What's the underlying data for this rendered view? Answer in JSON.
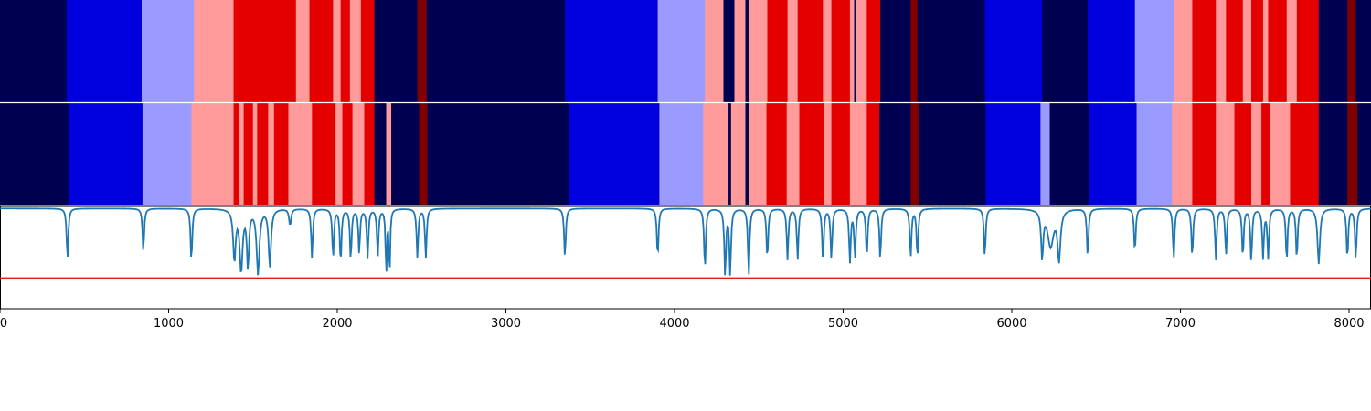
{
  "chart_data": {
    "type": "heatmap",
    "title": "",
    "xlabel": "",
    "ylabel": "",
    "xlim": [
      0,
      8130
    ],
    "x_ticks": [
      {
        "value": 0,
        "label": "0"
      },
      {
        "value": 1000,
        "label": "1000"
      },
      {
        "value": 2000,
        "label": "2000"
      },
      {
        "value": 3000,
        "label": "3000"
      },
      {
        "value": 4000,
        "label": "4000"
      },
      {
        "value": 5000,
        "label": "5000"
      },
      {
        "value": 6000,
        "label": "6000"
      },
      {
        "value": 7000,
        "label": "7000"
      },
      {
        "value": 8000,
        "label": "8000"
      }
    ],
    "state_colors": {
      "0": "#000050",
      "1": "#0000de",
      "2": "#9b9bff",
      "3": "#ff9b9b",
      "4": "#e50000",
      "5": "#800000"
    },
    "bands": [
      {
        "segments": [
          [
            0,
            395,
            0
          ],
          [
            395,
            840,
            1
          ],
          [
            840,
            1150,
            2
          ],
          [
            1150,
            1385,
            3
          ],
          [
            1385,
            1755,
            4
          ],
          [
            1755,
            1835,
            3
          ],
          [
            1835,
            1975,
            4
          ],
          [
            1975,
            2020,
            3
          ],
          [
            2020,
            2075,
            4
          ],
          [
            2075,
            2140,
            3
          ],
          [
            2140,
            2220,
            4
          ],
          [
            2220,
            2475,
            0
          ],
          [
            2475,
            2530,
            5
          ],
          [
            2530,
            3350,
            0
          ],
          [
            3350,
            3900,
            1
          ],
          [
            3900,
            4180,
            2
          ],
          [
            4180,
            4290,
            3
          ],
          [
            4290,
            4355,
            0
          ],
          [
            4355,
            4420,
            3
          ],
          [
            4420,
            4440,
            0
          ],
          [
            4440,
            4550,
            3
          ],
          [
            4550,
            4670,
            4
          ],
          [
            4670,
            4730,
            3
          ],
          [
            4730,
            4880,
            4
          ],
          [
            4880,
            4930,
            3
          ],
          [
            4930,
            5040,
            4
          ],
          [
            5040,
            5065,
            3
          ],
          [
            5065,
            5075,
            0
          ],
          [
            5075,
            5140,
            3
          ],
          [
            5140,
            5220,
            4
          ],
          [
            5220,
            5400,
            0
          ],
          [
            5400,
            5440,
            5
          ],
          [
            5440,
            5840,
            0
          ],
          [
            5840,
            6180,
            1
          ],
          [
            6180,
            6450,
            0
          ],
          [
            6450,
            6730,
            1
          ],
          [
            6730,
            6960,
            2
          ],
          [
            6960,
            7070,
            3
          ],
          [
            7070,
            7210,
            4
          ],
          [
            7210,
            7270,
            3
          ],
          [
            7270,
            7370,
            4
          ],
          [
            7370,
            7420,
            3
          ],
          [
            7420,
            7490,
            4
          ],
          [
            7490,
            7520,
            3
          ],
          [
            7520,
            7630,
            4
          ],
          [
            7630,
            7690,
            3
          ],
          [
            7690,
            7820,
            4
          ],
          [
            7820,
            7990,
            0
          ],
          [
            7990,
            8040,
            5
          ],
          [
            8040,
            8130,
            0
          ]
        ]
      },
      {
        "segments": [
          [
            0,
            410,
            0
          ],
          [
            410,
            845,
            1
          ],
          [
            845,
            1135,
            2
          ],
          [
            1135,
            1385,
            3
          ],
          [
            1385,
            1415,
            4
          ],
          [
            1415,
            1445,
            3
          ],
          [
            1445,
            1500,
            4
          ],
          [
            1500,
            1525,
            3
          ],
          [
            1525,
            1590,
            4
          ],
          [
            1590,
            1625,
            3
          ],
          [
            1625,
            1710,
            4
          ],
          [
            1710,
            1850,
            3
          ],
          [
            1850,
            1990,
            4
          ],
          [
            1990,
            2030,
            3
          ],
          [
            2030,
            2090,
            4
          ],
          [
            2090,
            2160,
            3
          ],
          [
            2160,
            2220,
            4
          ],
          [
            2220,
            2290,
            0
          ],
          [
            2290,
            2320,
            3
          ],
          [
            2320,
            2485,
            0
          ],
          [
            2485,
            2535,
            5
          ],
          [
            2535,
            3375,
            0
          ],
          [
            3375,
            3910,
            1
          ],
          [
            3910,
            4170,
            2
          ],
          [
            4170,
            4320,
            3
          ],
          [
            4320,
            4335,
            0
          ],
          [
            4335,
            4420,
            3
          ],
          [
            4420,
            4440,
            0
          ],
          [
            4440,
            4545,
            3
          ],
          [
            4545,
            4665,
            4
          ],
          [
            4665,
            4740,
            3
          ],
          [
            4740,
            4885,
            4
          ],
          [
            4885,
            4930,
            3
          ],
          [
            4930,
            5040,
            4
          ],
          [
            5040,
            5140,
            3
          ],
          [
            5140,
            5215,
            4
          ],
          [
            5215,
            5400,
            0
          ],
          [
            5400,
            5450,
            5
          ],
          [
            5450,
            5845,
            0
          ],
          [
            5845,
            6170,
            1
          ],
          [
            6170,
            6225,
            2
          ],
          [
            6225,
            6460,
            0
          ],
          [
            6460,
            6740,
            1
          ],
          [
            6740,
            6950,
            2
          ],
          [
            6950,
            7070,
            3
          ],
          [
            7070,
            7210,
            4
          ],
          [
            7210,
            7320,
            3
          ],
          [
            7320,
            7420,
            4
          ],
          [
            7420,
            7480,
            3
          ],
          [
            7480,
            7530,
            4
          ],
          [
            7530,
            7650,
            3
          ],
          [
            7650,
            7690,
            4
          ],
          [
            7690,
            7820,
            4
          ],
          [
            7820,
            7990,
            0
          ],
          [
            7990,
            8050,
            5
          ],
          [
            8050,
            8130,
            0
          ]
        ]
      }
    ],
    "signal": {
      "ylim": [
        0,
        1
      ],
      "baseline": 0.98,
      "threshold": 0.3,
      "threshold_color": "#e31a1c",
      "line_color": "#1f77b4",
      "dips": [
        [
          400,
          0.48,
          8
        ],
        [
          850,
          0.55,
          8
        ],
        [
          1135,
          0.46,
          8
        ],
        [
          1390,
          0.48,
          12
        ],
        [
          1430,
          0.38,
          14
        ],
        [
          1470,
          0.42,
          10
        ],
        [
          1530,
          0.35,
          14
        ],
        [
          1600,
          0.42,
          12
        ],
        [
          1720,
          0.82,
          10
        ],
        [
          1850,
          0.5,
          8
        ],
        [
          1975,
          0.5,
          8
        ],
        [
          2020,
          0.45,
          8
        ],
        [
          2080,
          0.48,
          8
        ],
        [
          2130,
          0.55,
          8
        ],
        [
          2180,
          0.5,
          8
        ],
        [
          2240,
          0.52,
          8
        ],
        [
          2290,
          0.32,
          6
        ],
        [
          2310,
          0.32,
          6
        ],
        [
          2475,
          0.5,
          8
        ],
        [
          2525,
          0.5,
          8
        ],
        [
          3350,
          0.5,
          8
        ],
        [
          3900,
          0.5,
          8
        ],
        [
          4180,
          0.38,
          8
        ],
        [
          4300,
          0.32,
          8
        ],
        [
          4330,
          0.34,
          8
        ],
        [
          4440,
          0.32,
          8
        ],
        [
          4550,
          0.48,
          8
        ],
        [
          4670,
          0.48,
          8
        ],
        [
          4730,
          0.48,
          8
        ],
        [
          4880,
          0.46,
          8
        ],
        [
          4930,
          0.48,
          8
        ],
        [
          5040,
          0.46,
          8
        ],
        [
          5070,
          0.5,
          8
        ],
        [
          5140,
          0.5,
          8
        ],
        [
          5220,
          0.48,
          8
        ],
        [
          5400,
          0.5,
          8
        ],
        [
          5440,
          0.5,
          8
        ],
        [
          5840,
          0.5,
          8
        ],
        [
          6180,
          0.52,
          10
        ],
        [
          6230,
          0.62,
          30
        ],
        [
          6280,
          0.5,
          14
        ],
        [
          6450,
          0.5,
          8
        ],
        [
          6730,
          0.55,
          8
        ],
        [
          6960,
          0.48,
          8
        ],
        [
          7070,
          0.5,
          8
        ],
        [
          7210,
          0.48,
          8
        ],
        [
          7270,
          0.52,
          8
        ],
        [
          7370,
          0.5,
          8
        ],
        [
          7420,
          0.46,
          8
        ],
        [
          7490,
          0.5,
          8
        ],
        [
          7520,
          0.5,
          8
        ],
        [
          7630,
          0.46,
          8
        ],
        [
          7690,
          0.48,
          8
        ],
        [
          7820,
          0.44,
          12
        ],
        [
          7990,
          0.48,
          8
        ],
        [
          8040,
          0.48,
          8
        ]
      ]
    }
  }
}
